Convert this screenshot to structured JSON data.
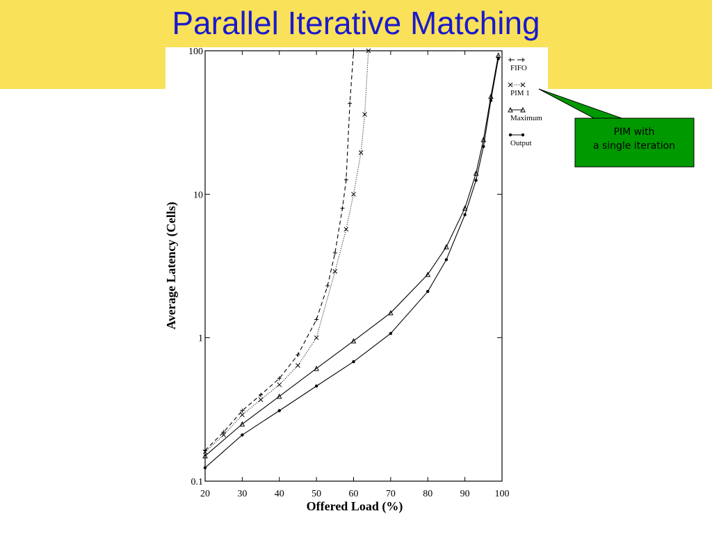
{
  "chart_data": {
    "type": "line",
    "title": "Parallel Iterative Matching",
    "x_label": "Offered Load (%)",
    "y_label": "Average Latency (Cells)",
    "annotation": "PIM with a single iteration",
    "xlim": [
      20,
      100
    ],
    "ylim": [
      0.1,
      100
    ],
    "log_y": true,
    "xticks": [
      20,
      30,
      40,
      50,
      60,
      70,
      80,
      90,
      100
    ],
    "yticks": [
      0.1,
      1,
      10,
      100
    ],
    "legend": "top-right",
    "series": [
      {
        "name": "FIFO",
        "color": "#000000",
        "marker": "plus",
        "dash": "6,4",
        "x": [
          20,
          25,
          30,
          35,
          40,
          45,
          50,
          53,
          55,
          57,
          58,
          59,
          60
        ],
        "values": [
          0.164,
          0.22,
          0.31,
          0.4,
          0.52,
          0.76,
          1.34,
          2.3,
          3.9,
          8,
          12.6,
          43,
          100
        ]
      },
      {
        "name": "PIM 1",
        "color": "#000000",
        "marker": "cross",
        "dash": "1,2",
        "x": [
          20,
          25,
          30,
          35,
          40,
          45,
          50,
          55,
          58,
          60,
          62,
          63,
          64
        ],
        "values": [
          0.16,
          0.21,
          0.29,
          0.37,
          0.47,
          0.64,
          1.0,
          2.9,
          5.7,
          10,
          19.5,
          36,
          100
        ]
      },
      {
        "name": "Maximum",
        "color": "#000000",
        "marker": "triangle",
        "dash": "none",
        "x": [
          20,
          30,
          40,
          50,
          60,
          70,
          80,
          85,
          90,
          93,
          95,
          97,
          99
        ],
        "values": [
          0.15,
          0.25,
          0.39,
          0.61,
          0.95,
          1.49,
          2.76,
          4.3,
          8,
          14,
          24,
          48,
          93
        ]
      },
      {
        "name": "Output",
        "color": "#000000",
        "marker": "dot",
        "dash": "none",
        "x": [
          20,
          30,
          40,
          50,
          60,
          70,
          80,
          85,
          90,
          93,
          95,
          97,
          99
        ],
        "values": [
          0.124,
          0.21,
          0.31,
          0.46,
          0.68,
          1.07,
          2.1,
          3.5,
          7.2,
          12.5,
          21.5,
          45,
          88
        ]
      }
    ]
  }
}
